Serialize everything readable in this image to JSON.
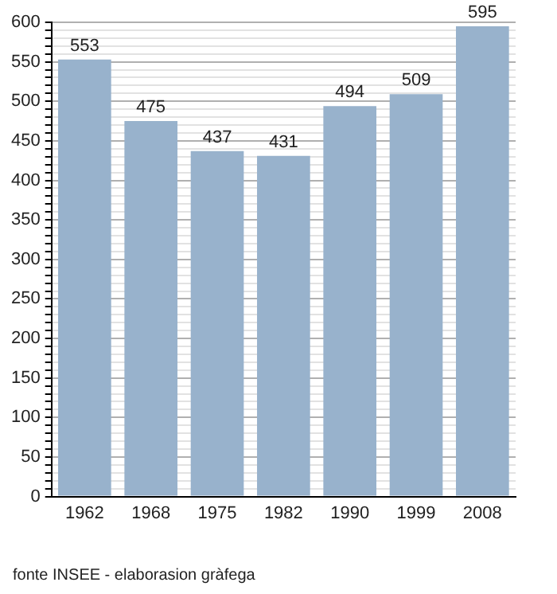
{
  "chart_data": {
    "type": "bar",
    "categories": [
      "1962",
      "1968",
      "1975",
      "1982",
      "1990",
      "1999",
      "2008"
    ],
    "values": [
      553,
      475,
      437,
      431,
      494,
      509,
      595
    ],
    "color": "#98b2cc",
    "data_labels": true,
    "ylim": [
      0,
      600
    ],
    "yticks": [
      0,
      {
        "value": 10,
        "label": null
      },
      {
        "value": 20,
        "label": null
      },
      {
        "value": 30,
        "label": null
      },
      {
        "value": 40,
        "label": null
      },
      50,
      {
        "value": 60,
        "label": null
      },
      {
        "value": 70,
        "label": null
      },
      {
        "value": 80,
        "label": null
      },
      {
        "value": 90,
        "label": null
      },
      100,
      {
        "value": 110,
        "label": null
      },
      {
        "value": 120,
        "label": null
      },
      {
        "value": 130,
        "label": null
      },
      {
        "value": 140,
        "label": null
      },
      150,
      {
        "value": 160,
        "label": null
      },
      {
        "value": 170,
        "label": null
      },
      {
        "value": 180,
        "label": null
      },
      {
        "value": 190,
        "label": null
      },
      200,
      {
        "value": 210,
        "label": null
      },
      {
        "value": 220,
        "label": null
      },
      {
        "value": 230,
        "label": null
      },
      {
        "value": 240,
        "label": null
      },
      250,
      {
        "value": 260,
        "label": null
      },
      {
        "value": 270,
        "label": null
      },
      {
        "value": 280,
        "label": null
      },
      {
        "value": 290,
        "label": null
      },
      300,
      {
        "value": 310,
        "label": null
      },
      {
        "value": 320,
        "label": null
      },
      {
        "value": 330,
        "label": null
      },
      {
        "value": 340,
        "label": null
      },
      350,
      {
        "value": 360,
        "label": null
      },
      {
        "value": 370,
        "label": null
      },
      {
        "value": 380,
        "label": null
      },
      {
        "value": 390,
        "label": null
      },
      400,
      {
        "value": 410,
        "label": null
      },
      {
        "value": 420,
        "label": null
      },
      {
        "value": 430,
        "label": null
      },
      {
        "value": 440,
        "label": null
      },
      450,
      {
        "value": 460,
        "label": null
      },
      {
        "value": 470,
        "label": null
      },
      {
        "value": 480,
        "label": null
      },
      {
        "value": 490,
        "label": null
      },
      500,
      {
        "value": 510,
        "label": null
      },
      {
        "value": 520,
        "label": null
      },
      {
        "value": 530,
        "label": null
      },
      {
        "value": 540,
        "label": null
      },
      550,
      {
        "value": 560,
        "label": null
      },
      {
        "value": 570,
        "label": null
      },
      {
        "value": 580,
        "label": null
      },
      {
        "value": 590,
        "label": null
      },
      600
    ],
    "grid": "y",
    "legend": false,
    "annotations": [
      "fonte INSEE - elaborasion gràfega"
    ]
  }
}
